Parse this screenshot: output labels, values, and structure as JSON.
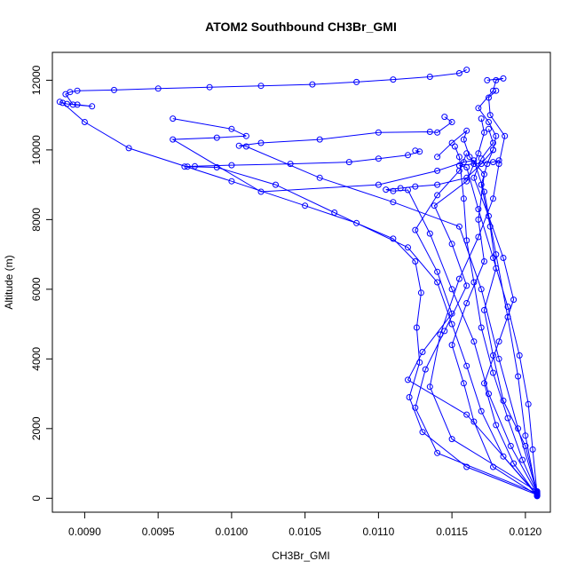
{
  "chart_data": {
    "type": "line",
    "title": "ATOM2 Southbound CH3Br_GMI",
    "xlabel": "CH3Br_GMI",
    "ylabel": "Altitude (m)",
    "xlim": [
      0.00878,
      0.01217
    ],
    "ylim": [
      -400,
      12800
    ],
    "xticks": [
      0.009,
      0.0095,
      0.01,
      0.0105,
      0.011,
      0.0115,
      0.012
    ],
    "xtick_labels": [
      "0.0090",
      "0.0095",
      "0.0100",
      "0.0105",
      "0.0110",
      "0.0115",
      "0.0120"
    ],
    "yticks": [
      0,
      2000,
      4000,
      6000,
      8000,
      10000,
      12000
    ],
    "ytick_labels": [
      "0",
      "2000",
      "4000",
      "6000",
      "8000",
      "10000",
      "12000"
    ],
    "grid": false,
    "marker": "open-circle",
    "series_color": "#0000ff",
    "series": [
      {
        "points": [
          [
            0.01208,
            100
          ],
          [
            0.0116,
            900
          ],
          [
            0.0113,
            1900
          ],
          [
            0.01121,
            2900
          ],
          [
            0.01128,
            3900
          ],
          [
            0.01126,
            4900
          ],
          [
            0.01129,
            5900
          ],
          [
            0.01125,
            6800
          ],
          [
            0.0111,
            7450
          ],
          [
            0.01085,
            7900
          ],
          [
            0.0105,
            8400
          ],
          [
            0.01,
            9100
          ],
          [
            0.0093,
            10050
          ],
          [
            0.009,
            10800
          ],
          [
            0.00885,
            11350
          ],
          [
            0.00883,
            11380
          ],
          [
            0.00888,
            11320
          ],
          [
            0.00895,
            11300
          ],
          [
            0.00905,
            11250
          ],
          [
            0.00892,
            11300
          ],
          [
            0.00887,
            11600
          ],
          [
            0.0089,
            11660
          ],
          [
            0.00895,
            11700
          ],
          [
            0.0092,
            11720
          ],
          [
            0.0095,
            11760
          ],
          [
            0.00985,
            11800
          ],
          [
            0.0102,
            11840
          ],
          [
            0.01055,
            11880
          ],
          [
            0.01085,
            11950
          ],
          [
            0.0111,
            12020
          ],
          [
            0.01135,
            12100
          ],
          [
            0.01155,
            12200
          ],
          [
            0.0116,
            12300
          ]
        ]
      },
      {
        "points": [
          [
            0.01208,
            80
          ],
          [
            0.01185,
            1200
          ],
          [
            0.0117,
            2500
          ],
          [
            0.0116,
            3800
          ],
          [
            0.0115,
            5000
          ],
          [
            0.0114,
            6200
          ],
          [
            0.0112,
            7200
          ],
          [
            0.0107,
            8200
          ],
          [
            0.0103,
            9000
          ],
          [
            0.0099,
            9500
          ],
          [
            0.0097,
            9520
          ],
          [
            0.00968,
            9520
          ],
          [
            0.00975,
            9530
          ],
          [
            0.01,
            9560
          ],
          [
            0.0104,
            9600
          ],
          [
            0.0108,
            9650
          ],
          [
            0.011,
            9750
          ],
          [
            0.0112,
            9850
          ],
          [
            0.01128,
            9950
          ],
          [
            0.01125,
            9980
          ]
        ]
      },
      {
        "points": [
          [
            0.01208,
            120
          ],
          [
            0.0119,
            1500
          ],
          [
            0.01175,
            3000
          ],
          [
            0.01165,
            4500
          ],
          [
            0.0115,
            6000
          ],
          [
            0.01135,
            7600
          ],
          [
            0.0112,
            8850
          ],
          [
            0.0111,
            8820
          ],
          [
            0.01105,
            8860
          ],
          [
            0.01115,
            8900
          ],
          [
            0.01125,
            8950
          ],
          [
            0.0114,
            9000
          ],
          [
            0.0116,
            9200
          ],
          [
            0.0117,
            9600
          ],
          [
            0.01178,
            10000
          ],
          [
            0.0118,
            10400
          ],
          [
            0.01175,
            10800
          ],
          [
            0.01168,
            11200
          ],
          [
            0.01178,
            11700
          ],
          [
            0.0118,
            12000
          ],
          [
            0.01185,
            12050
          ],
          [
            0.01174,
            12000
          ]
        ]
      },
      {
        "points": [
          [
            0.01208,
            150
          ],
          [
            0.01195,
            2000
          ],
          [
            0.01182,
            4000
          ],
          [
            0.0117,
            6000
          ],
          [
            0.01155,
            7800
          ],
          [
            0.0111,
            8500
          ],
          [
            0.0106,
            9200
          ],
          [
            0.0101,
            10100
          ],
          [
            0.01005,
            10120
          ],
          [
            0.0102,
            10200
          ],
          [
            0.0106,
            10300
          ],
          [
            0.011,
            10500
          ],
          [
            0.01135,
            10520
          ],
          [
            0.0114,
            10500
          ],
          [
            0.0115,
            10800
          ],
          [
            0.01145,
            10950
          ]
        ]
      },
      {
        "points": [
          [
            0.01208,
            60
          ],
          [
            0.012,
            1800
          ],
          [
            0.01195,
            3500
          ],
          [
            0.01188,
            5200
          ],
          [
            0.0118,
            7000
          ],
          [
            0.01172,
            8800
          ],
          [
            0.01165,
            9700
          ],
          [
            0.01158,
            9650
          ],
          [
            0.0114,
            9400
          ],
          [
            0.011,
            9000
          ],
          [
            0.0102,
            8800
          ],
          [
            0.0096,
            10300
          ],
          [
            0.0099,
            10350
          ],
          [
            0.0101,
            10400
          ],
          [
            0.01,
            10600
          ],
          [
            0.0096,
            10900
          ]
        ]
      },
      {
        "points": [
          [
            0.01208,
            200
          ],
          [
            0.0115,
            1700
          ],
          [
            0.01135,
            3200
          ],
          [
            0.01142,
            4700
          ],
          [
            0.01155,
            6300
          ],
          [
            0.01168,
            7500
          ],
          [
            0.01178,
            8600
          ],
          [
            0.01182,
            9600
          ],
          [
            0.01186,
            10400
          ],
          [
            0.01176,
            11000
          ],
          [
            0.01175,
            11500
          ],
          [
            0.0118,
            11700
          ]
        ]
      },
      {
        "points": [
          [
            0.01208,
            90
          ],
          [
            0.01178,
            900
          ],
          [
            0.01165,
            2200
          ],
          [
            0.01158,
            3300
          ],
          [
            0.0115,
            4400
          ],
          [
            0.0116,
            5600
          ],
          [
            0.01172,
            6800
          ],
          [
            0.01168,
            8000
          ],
          [
            0.01172,
            9300
          ],
          [
            0.01162,
            9800
          ],
          [
            0.01158,
            10300
          ],
          [
            0.0116,
            10550
          ],
          [
            0.0115,
            10200
          ],
          [
            0.0114,
            9800
          ]
        ]
      },
      {
        "points": [
          [
            0.01208,
            110
          ],
          [
            0.01205,
            1400
          ],
          [
            0.01202,
            2700
          ],
          [
            0.01196,
            4100
          ],
          [
            0.01188,
            5500
          ],
          [
            0.01178,
            6900
          ],
          [
            0.01168,
            8300
          ],
          [
            0.0116,
            9500
          ],
          [
            0.01155,
            9550
          ],
          [
            0.01165,
            9600
          ],
          [
            0.01178,
            9650
          ],
          [
            0.01182,
            9700
          ]
        ]
      },
      {
        "points": [
          [
            0.01208,
            140
          ],
          [
            0.0114,
            1300
          ],
          [
            0.01125,
            2600
          ],
          [
            0.01132,
            3700
          ],
          [
            0.01145,
            4800
          ],
          [
            0.0116,
            6100
          ],
          [
            0.0115,
            7300
          ],
          [
            0.01138,
            8400
          ],
          [
            0.0116,
            9100
          ],
          [
            0.01168,
            9900
          ],
          [
            0.01172,
            10500
          ],
          [
            0.0117,
            10900
          ]
        ]
      },
      {
        "points": [
          [
            0.01208,
            70
          ],
          [
            0.01192,
            1000
          ],
          [
            0.0118,
            2100
          ],
          [
            0.01172,
            3300
          ],
          [
            0.01182,
            4500
          ],
          [
            0.01192,
            5700
          ],
          [
            0.01185,
            6900
          ],
          [
            0.01175,
            8100
          ],
          [
            0.01165,
            9200
          ],
          [
            0.0117,
            9750
          ],
          [
            0.01178,
            10200
          ],
          [
            0.01175,
            10600
          ]
        ]
      },
      {
        "points": [
          [
            0.01208,
            160
          ],
          [
            0.01198,
            1100
          ],
          [
            0.01188,
            2300
          ],
          [
            0.01178,
            3600
          ],
          [
            0.0117,
            4900
          ],
          [
            0.01165,
            6200
          ],
          [
            0.0116,
            7400
          ],
          [
            0.01158,
            8600
          ],
          [
            0.01155,
            9800
          ],
          [
            0.01152,
            10100
          ]
        ]
      },
      {
        "points": [
          [
            0.01208,
            100
          ],
          [
            0.0116,
            2400
          ],
          [
            0.0112,
            3400
          ],
          [
            0.0113,
            4200
          ],
          [
            0.0115,
            5300
          ],
          [
            0.0114,
            6500
          ],
          [
            0.01125,
            7700
          ],
          [
            0.0114,
            8700
          ],
          [
            0.01155,
            9400
          ],
          [
            0.0116,
            9900
          ]
        ]
      },
      {
        "points": [
          [
            0.01208,
            180
          ],
          [
            0.012,
            1500
          ],
          [
            0.01185,
            2800
          ],
          [
            0.01178,
            4100
          ],
          [
            0.01172,
            5400
          ],
          [
            0.0118,
            6600
          ],
          [
            0.01176,
            7800
          ],
          [
            0.0117,
            9000
          ],
          [
            0.01174,
            9600
          ],
          [
            0.01178,
            10000
          ]
        ]
      }
    ]
  }
}
